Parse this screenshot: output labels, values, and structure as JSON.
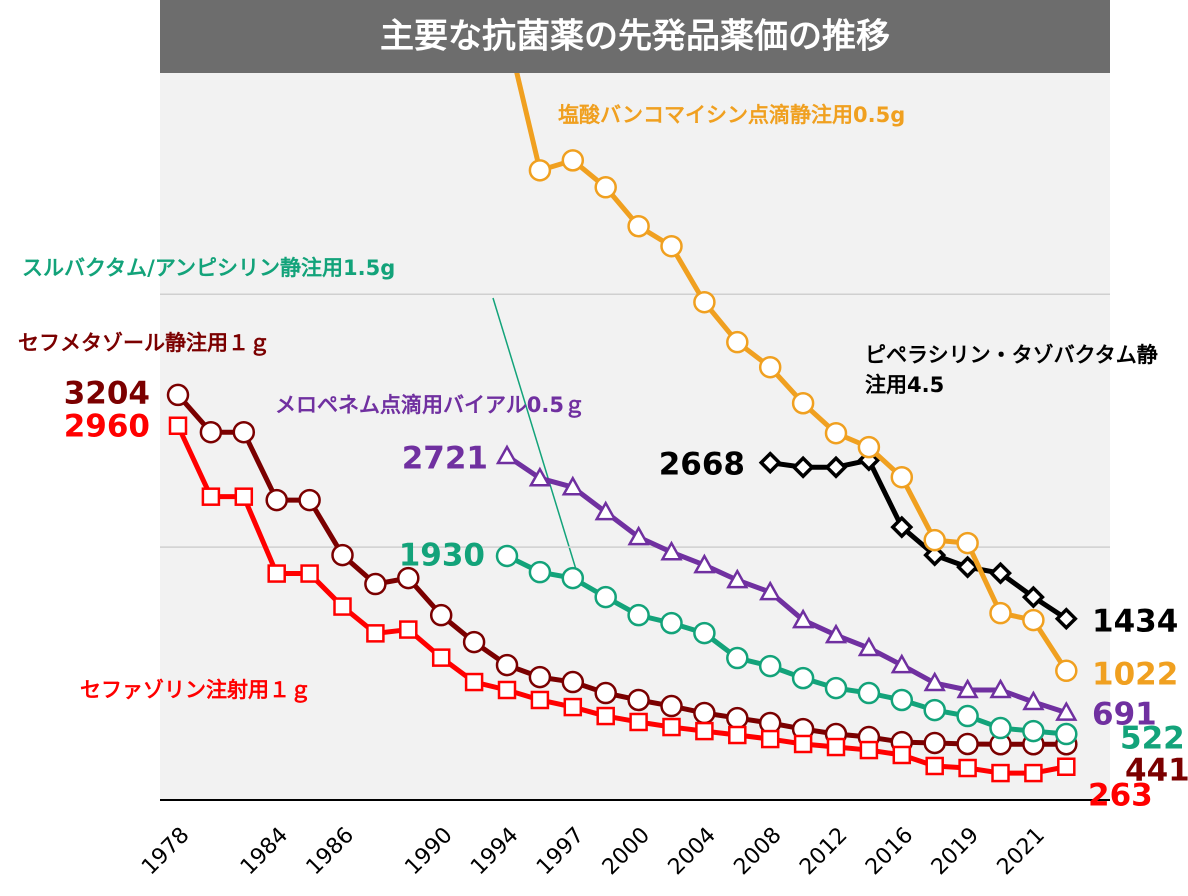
{
  "chart_data": {
    "type": "line",
    "title": "主要な抗菌薬の先発品薬価の推移",
    "categories": [
      "1978",
      null,
      null,
      "1984",
      null,
      "1986",
      null,
      null,
      "1990",
      null,
      "1994",
      null,
      "1997",
      null,
      "2000",
      null,
      "2004",
      null,
      "2008",
      null,
      "2012",
      null,
      "2016",
      null,
      "2019",
      null,
      "2021",
      null
    ],
    "ylim": [
      0,
      5750
    ],
    "yticks": [
      0,
      2000,
      4000
    ],
    "grid": true,
    "series": [
      {
        "name": "セフメタゾール静注用１ｇ",
        "color": "#7b0000",
        "marker": "circle",
        "values": [
          3204,
          2909,
          2909,
          2372,
          2372,
          1937,
          1708,
          1755,
          1462,
          1249,
          1067,
          972,
          933,
          846,
          791,
          743,
          688,
          648,
          609,
          561,
          522,
          498,
          458,
          451,
          443,
          441,
          441,
          441
        ]
      },
      {
        "name": "セファゾリン注射用１ｇ",
        "color": "#ff0000",
        "marker": "square",
        "values": [
          2960,
          2399,
          2399,
          1791,
          1791,
          1530,
          1318,
          1348,
          1126,
          933,
          870,
          791,
          735,
          664,
          617,
          577,
          545,
          514,
          482,
          443,
          419,
          395,
          356,
          269,
          253,
          213,
          213,
          263
        ]
      },
      {
        "name": "メロペネム点滴用バイアル0.5ｇ",
        "color": "#7030a0",
        "marker": "triangle",
        "values": [
          null,
          null,
          null,
          null,
          null,
          null,
          null,
          null,
          null,
          null,
          2721,
          2545,
          2474,
          2277,
          2079,
          1960,
          1858,
          1739,
          1644,
          1423,
          1304,
          1202,
          1067,
          925,
          870,
          870,
          775,
          691
        ]
      },
      {
        "name": "スルバクタム/アンピシリン静注用1.5g",
        "color": "#13a37a",
        "marker": "circle",
        "values": [
          null,
          null,
          null,
          null,
          null,
          null,
          null,
          null,
          null,
          null,
          1930,
          1802,
          1755,
          1605,
          1462,
          1399,
          1320,
          1123,
          1059,
          964,
          885,
          846,
          791,
          711,
          664,
          569,
          545,
          522
        ]
      },
      {
        "name": "ピペラシリン・タゾバクタム静注用4.5",
        "color": "#000000",
        "marker": "diamond",
        "values": [
          null,
          null,
          null,
          null,
          null,
          null,
          null,
          null,
          null,
          null,
          null,
          null,
          null,
          null,
          null,
          null,
          null,
          null,
          2668,
          2632,
          2632,
          2688,
          2158,
          1937,
          1842,
          1794,
          1605,
          1434
        ]
      },
      {
        "name": "塩酸バンコマイシン点滴静注用0.5g",
        "color": "#f0a020",
        "marker": "circle",
        "values": [
          null,
          null,
          null,
          null,
          null,
          null,
          null,
          null,
          null,
          null,
          6080,
          4980,
          5059,
          4846,
          4538,
          4380,
          3937,
          3621,
          3423,
          3138,
          2901,
          2791,
          2553,
          2055,
          2032,
          1478,
          1423,
          1022
        ]
      }
    ]
  }
}
